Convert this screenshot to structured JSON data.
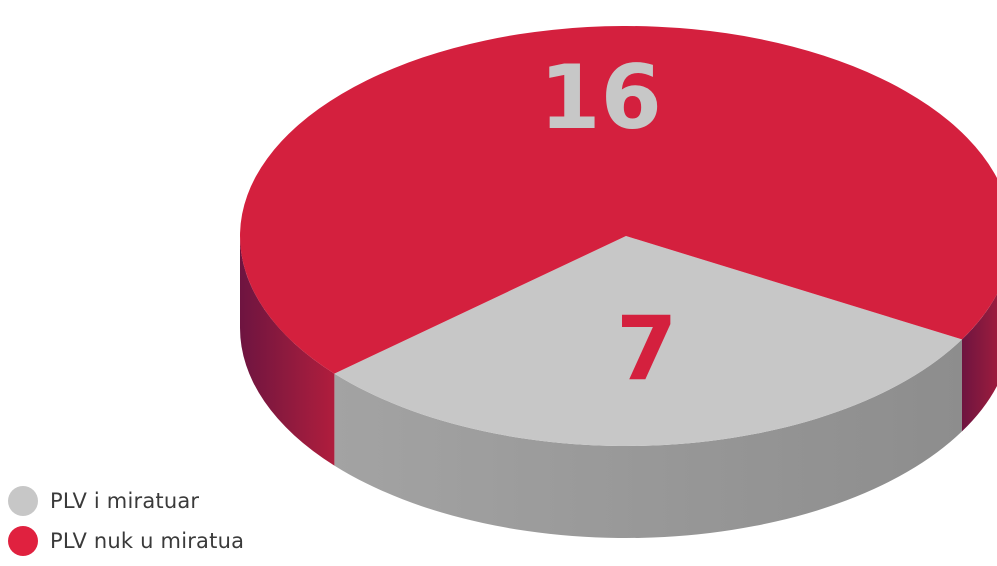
{
  "chart_data": {
    "type": "pie",
    "categories": [
      "PLV i miratuar",
      "PLV nuk u miratua"
    ],
    "values": [
      7,
      16
    ],
    "colors": {
      "PLV i miratuar": "#c7c7c7",
      "PLV nuk u miratua": "#d4203e"
    },
    "side_colors": {
      "PLV i miratuar": "#9a9a9a",
      "PLV nuk u miratua": "#8a1a3c"
    },
    "label_colors": {
      "PLV i miratuar": "#d4203e",
      "PLV nuk u miratua": "#c7c7c7"
    },
    "data_labels": [
      "7",
      "16"
    ],
    "style": "3d",
    "legend_position": "bottom-left"
  },
  "legend": {
    "items": [
      {
        "label": "PLV i miratuar",
        "color": "#c7c7c7"
      },
      {
        "label": "PLV nuk u miratua",
        "color": "#e0213f"
      }
    ]
  }
}
